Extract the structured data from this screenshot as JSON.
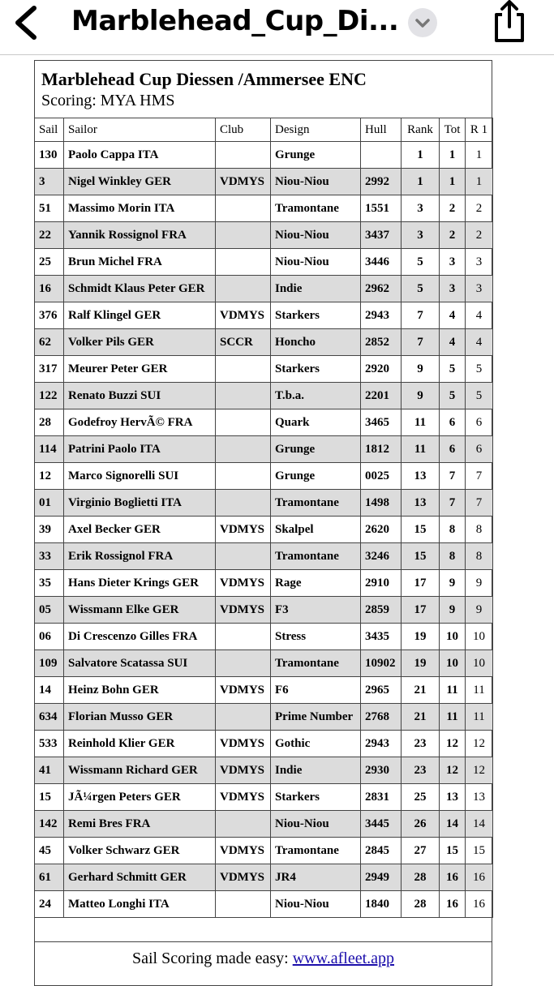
{
  "header": {
    "title": "Marblehead_Cup_Di..."
  },
  "document": {
    "title": "Marblehead Cup Diessen /Ammersee ENC",
    "subtitle": "Scoring: MYA HMS"
  },
  "table": {
    "columns": [
      "Sail",
      "Sailor",
      "Club",
      "Design",
      "Hull",
      "Rank",
      "Tot",
      "R 1"
    ],
    "rows": [
      [
        "130",
        "Paolo Cappa ITA",
        null,
        "Grunge",
        null,
        "1",
        "1",
        "1"
      ],
      [
        "3",
        "Nigel Winkley GER",
        "VDMYS",
        "Niou-Niou",
        "2992",
        "1",
        "1",
        "1"
      ],
      [
        "51",
        "Massimo Morin ITA",
        null,
        "Tramontane",
        "1551",
        "3",
        "2",
        "2"
      ],
      [
        "22",
        "Yannik Rossignol FRA",
        null,
        "Niou-Niou",
        "3437",
        "3",
        "2",
        "2"
      ],
      [
        "25",
        "Brun Michel FRA",
        null,
        "Niou-Niou",
        "3446",
        "5",
        "3",
        "3"
      ],
      [
        "16",
        "Schmidt Klaus Peter GER",
        null,
        "Indie",
        "2962",
        "5",
        "3",
        "3"
      ],
      [
        "376",
        "Ralf Klingel GER",
        "VDMYS",
        "Starkers",
        "2943",
        "7",
        "4",
        "4"
      ],
      [
        "62",
        "Volker Pils GER",
        "SCCR",
        "Honcho",
        "2852",
        "7",
        "4",
        "4"
      ],
      [
        "317",
        "Meurer Peter GER",
        null,
        "Starkers",
        "2920",
        "9",
        "5",
        "5"
      ],
      [
        "122",
        "Renato Buzzi SUI",
        null,
        "T.b.a.",
        "2201",
        "9",
        "5",
        "5"
      ],
      [
        "28",
        "Godefroy HervÃ© FRA",
        null,
        "Quark",
        "3465",
        "11",
        "6",
        "6"
      ],
      [
        "114",
        "Patrini Paolo ITA",
        null,
        "Grunge",
        "1812",
        "11",
        "6",
        "6"
      ],
      [
        "12",
        "Marco Signorelli SUI",
        null,
        "Grunge",
        "0025",
        "13",
        "7",
        "7"
      ],
      [
        "01",
        "Virginio Boglietti ITA",
        null,
        "Tramontane",
        "1498",
        "13",
        "7",
        "7"
      ],
      [
        "39",
        "Axel Becker GER",
        "VDMYS",
        "Skalpel",
        "2620",
        "15",
        "8",
        "8"
      ],
      [
        "33",
        "Erik Rossignol FRA",
        null,
        "Tramontane",
        "3246",
        "15",
        "8",
        "8"
      ],
      [
        "35",
        "Hans Dieter Krings GER",
        "VDMYS",
        "Rage",
        "2910",
        "17",
        "9",
        "9"
      ],
      [
        "05",
        "Wissmann Elke GER",
        "VDMYS",
        "F3",
        "2859",
        "17",
        "9",
        "9"
      ],
      [
        "06",
        "Di Crescenzo Gilles FRA",
        null,
        "Stress",
        "3435",
        "19",
        "10",
        "10"
      ],
      [
        "109",
        "Salvatore Scatassa SUI",
        null,
        "Tramontane",
        "10902",
        "19",
        "10",
        "10"
      ],
      [
        "14",
        "Heinz Bohn GER",
        "VDMYS",
        "F6",
        "2965",
        "21",
        "11",
        "11"
      ],
      [
        "634",
        "Florian Musso GER",
        null,
        "Prime Number",
        "2768",
        "21",
        "11",
        "11"
      ],
      [
        "533",
        "Reinhold Klier GER",
        "VDMYS",
        "Gothic",
        "2943",
        "23",
        "12",
        "12"
      ],
      [
        "41",
        "Wissmann Richard GER",
        "VDMYS",
        "Indie",
        "2930",
        "23",
        "12",
        "12"
      ],
      [
        "15",
        "JÃ¼rgen Peters GER",
        "VDMYS",
        "Starkers",
        "2831",
        "25",
        "13",
        "13"
      ],
      [
        "142",
        "Remi Bres FRA",
        null,
        "Niou-Niou",
        "3445",
        "26",
        "14",
        "14"
      ],
      [
        "45",
        "Volker Schwarz GER",
        "VDMYS",
        "Tramontane",
        "2845",
        "27",
        "15",
        "15"
      ],
      [
        "61",
        "Gerhard Schmitt GER",
        "VDMYS",
        "JR4",
        "2949",
        "28",
        "16",
        "16"
      ],
      [
        "24",
        "Matteo Longhi ITA",
        null,
        "Niou-Niou",
        "1840",
        "28",
        "16",
        "16"
      ]
    ]
  },
  "footer": {
    "text": "Sail Scoring made easy:",
    "link": "www.afleet.app"
  }
}
